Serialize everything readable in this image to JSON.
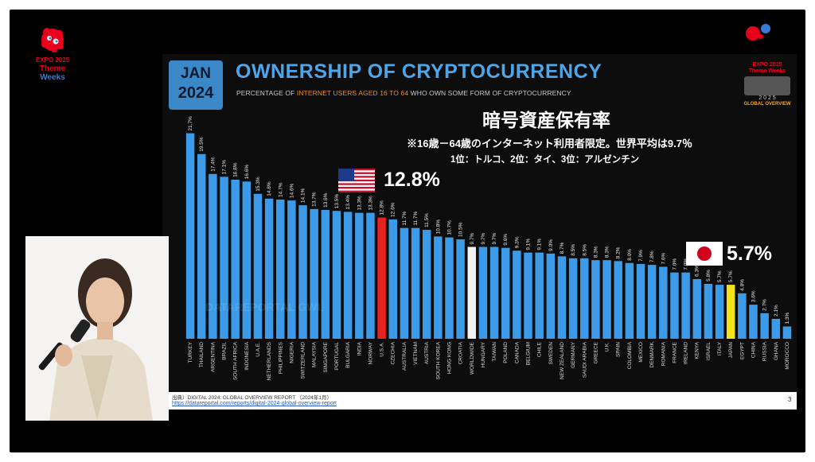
{
  "expo_badge": {
    "line1": "EXPO 2025",
    "line2": "Theme",
    "line3": "Weeks"
  },
  "slide": {
    "badge_month": "JAN",
    "badge_year": "2024",
    "title": "OWNERSHIP OF CRYPTOCURRENCY",
    "subtitle_parts": [
      "PERCENTAGE OF ",
      "INTERNET USERS AGED 16 TO 64",
      " WHO OWN SOME FORM OF CRYPTOCURRENCY"
    ],
    "jp_title": "暗号資産保有率",
    "jp_note1": "※16歳－64歳のインターネット利用者限定。世界平均は9.7％",
    "jp_note2": "1位：トルコ、2位：タイ、3位：アルゼンチン",
    "us_callout": "12.8%",
    "jp_callout": "5.7%",
    "watermark": "DATAREPORTAL   GWI.",
    "go_logo": {
      "expo": "EXPO 2025",
      "theme": "Theme Weeks",
      "year": "2 0 2 5",
      "overview": "GLOBAL OVERVIEW"
    },
    "source": "出典）DIGITAL 2024: GLOBAL OVERVIEW REPORT （2024年1月）",
    "source_link": "https://datareportal.com/reports/digital-2024-global-overview-report",
    "page_number": "3"
  },
  "colors": {
    "bar": "#3b9be8",
    "us": "#e8231f",
    "worldwide": "#f2f2f2",
    "japan": "#f5e31a",
    "title": "#4da6ea",
    "accent": "#f08a24"
  },
  "chart_data": {
    "type": "bar",
    "categories": [
      "TURKEY",
      "THAILAND",
      "ARGENTINA",
      "BRAZIL",
      "SOUTH AFRICA",
      "INDONESIA",
      "U.A.E.",
      "NETHERLANDS",
      "PHILIPPINES",
      "NIGERIA",
      "SWITZERLAND",
      "MALAYSIA",
      "SINGAPORE",
      "PORTUGAL",
      "BULGARIA",
      "INDIA",
      "NORWAY",
      "U.S.A.",
      "CZECHIA",
      "AUSTRALIA",
      "VIETNAM",
      "AUSTRIA",
      "SOUTH KOREA",
      "HONG KONG",
      "CROATIA",
      "WORLDWIDE",
      "HUNGARY",
      "TAIWAN",
      "POLAND",
      "CANADA",
      "BELGIUM",
      "CHILE",
      "SWEDEN",
      "NEW ZEALAND",
      "GERMANY",
      "SAUDI ARABIA",
      "GREECE",
      "U.K.",
      "SPAIN",
      "COLOMBIA",
      "MEXICO",
      "DENMARK",
      "ROMANIA",
      "FRANCE",
      "IRELAND",
      "KENYA",
      "ISRAEL",
      "ITALY",
      "JAPAN",
      "EGYPT",
      "CHINA",
      "RUSSIA",
      "GHANA",
      "MOROCCO"
    ],
    "values": [
      21.7,
      19.5,
      17.4,
      17.1,
      16.8,
      16.6,
      15.3,
      14.8,
      14.7,
      14.6,
      14.1,
      13.7,
      13.6,
      13.5,
      13.4,
      13.3,
      13.3,
      12.8,
      12.6,
      11.7,
      11.7,
      11.5,
      10.8,
      10.7,
      10.5,
      9.7,
      9.7,
      9.7,
      9.6,
      9.3,
      9.1,
      9.1,
      9.0,
      8.7,
      8.5,
      8.5,
      8.3,
      8.3,
      8.2,
      8.0,
      7.9,
      7.8,
      7.6,
      7.0,
      7.0,
      6.3,
      5.8,
      5.7,
      5.7,
      4.8,
      3.6,
      2.7,
      2.1,
      1.3
    ],
    "value_labels": [
      "21.7%",
      "19.5%",
      "17.4%",
      "17.1%",
      "16.8%",
      "16.6%",
      "15.3%",
      "14.8%",
      "14.7%",
      "14.6%",
      "14.1%",
      "13.7%",
      "13.6%",
      "13.5%",
      "13.4%",
      "13.3%",
      "13.3%",
      "12.8%",
      "12.6%",
      "11.7%",
      "11.7%",
      "11.5%",
      "10.8%",
      "10.7%",
      "10.5%",
      "9.7%",
      "9.7%",
      "9.7%",
      "9.6%",
      "9.3%",
      "9.1%",
      "9.1%",
      "9.0%",
      "8.7%",
      "8.5%",
      "8.5%",
      "8.3%",
      "8.3%",
      "8.2%",
      "8.0%",
      "7.9%",
      "7.8%",
      "7.6%",
      "7.0%",
      "7.0%",
      "6.3%",
      "5.8%",
      "5.7%",
      "5.7%",
      "4.8%",
      "3.6%",
      "2.7%",
      "2.1%",
      "1.3%"
    ],
    "highlight": {
      "U.S.A.": "us",
      "WORLDWIDE": "worldwide",
      "JAPAN": "japan"
    },
    "ylim": [
      0,
      22
    ]
  }
}
